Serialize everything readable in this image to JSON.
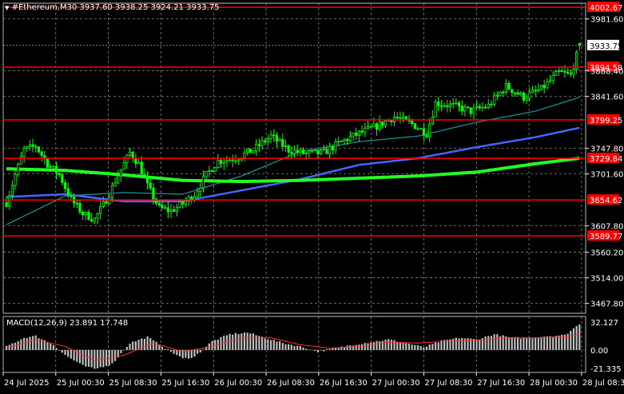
{
  "header": {
    "symbol_line": "#Ethereum,M30  3937.60 3938.25 3924.21 3933.75"
  },
  "colors": {
    "background": "#000000",
    "grid": "#9a9a9a",
    "candle": "#00ff00",
    "level_line": "#ff0000",
    "label_bg": "#ff0000",
    "ma_fast": "#1f8c8c",
    "ma_mid": "#4466ff",
    "ma_slow": "#22ff22",
    "macd_hist": "#c0c0c0",
    "macd_signal": "#ff3030",
    "axis_text": "#ffffff"
  },
  "chart_data": [
    {
      "type": "candlestick",
      "timeframe": "M30",
      "symbol": "#Ethereum",
      "ohlc_last": {
        "open": 3937.6,
        "high": 3938.25,
        "low": 3924.21,
        "close": 3933.75
      },
      "ylim": [
        3450,
        4010
      ],
      "y_ticks": [
        "3981.60",
        "3888.40",
        "3841.60",
        "3747.80",
        "3701.60",
        "3607.80",
        "3560.20",
        "3514.00",
        "3467.80"
      ],
      "x_ticks": [
        "24 Jul 2025",
        "25 Jul 00:30",
        "25 Jul 08:30",
        "25 Jul 16:30",
        "26 Jul 00:30",
        "26 Jul 08:30",
        "26 Jul 16:30",
        "27 Jul 00:30",
        "27 Jul 08:30",
        "27 Jul 16:30",
        "28 Jul 00:30",
        "28 Jul 08:30"
      ],
      "current_price": "3933.75",
      "levels": [
        "4002.67",
        "3894.58",
        "3799.25",
        "3729.84",
        "3654.62",
        "3589.77"
      ],
      "close_anchors": [
        [
          0,
          3650
        ],
        [
          3,
          3700
        ],
        [
          6,
          3745
        ],
        [
          10,
          3752
        ],
        [
          14,
          3720
        ],
        [
          18,
          3700
        ],
        [
          22,
          3655
        ],
        [
          26,
          3630
        ],
        [
          30,
          3620
        ],
        [
          34,
          3655
        ],
        [
          38,
          3700
        ],
        [
          42,
          3740
        ],
        [
          45,
          3720
        ],
        [
          48,
          3680
        ],
        [
          52,
          3640
        ],
        [
          56,
          3635
        ],
        [
          60,
          3648
        ],
        [
          64,
          3665
        ],
        [
          68,
          3700
        ],
        [
          72,
          3725
        ],
        [
          78,
          3730
        ],
        [
          84,
          3745
        ],
        [
          90,
          3770
        ],
        [
          96,
          3745
        ],
        [
          102,
          3738
        ],
        [
          108,
          3740
        ],
        [
          114,
          3760
        ],
        [
          120,
          3775
        ],
        [
          126,
          3788
        ],
        [
          132,
          3805
        ],
        [
          138,
          3792
        ],
        [
          143,
          3775
        ],
        [
          146,
          3830
        ],
        [
          152,
          3825
        ],
        [
          158,
          3815
        ],
        [
          164,
          3825
        ],
        [
          170,
          3860
        ],
        [
          176,
          3840
        ],
        [
          182,
          3855
        ],
        [
          188,
          3885
        ],
        [
          192,
          3880
        ],
        [
          195,
          3933
        ]
      ],
      "moving_averages": [
        {
          "color_key": "ma_fast",
          "anchors": [
            [
              0,
              3610
            ],
            [
              20,
              3662
            ],
            [
              40,
              3668
            ],
            [
              60,
              3665
            ],
            [
              80,
              3698
            ],
            [
              100,
              3742
            ],
            [
              120,
              3760
            ],
            [
              140,
              3770
            ],
            [
              160,
              3795
            ],
            [
              180,
              3815
            ],
            [
              195,
              3840
            ]
          ]
        },
        {
          "color_key": "ma_mid",
          "anchors": [
            [
              0,
              3660
            ],
            [
              20,
              3665
            ],
            [
              40,
              3652
            ],
            [
              60,
              3652
            ],
            [
              80,
              3672
            ],
            [
              100,
              3692
            ],
            [
              120,
              3718
            ],
            [
              140,
              3730
            ],
            [
              160,
              3750
            ],
            [
              180,
              3768
            ],
            [
              195,
              3785
            ]
          ]
        },
        {
          "color_key": "ma_slow",
          "anchors": [
            [
              0,
              3711
            ],
            [
              20,
              3708
            ],
            [
              40,
              3700
            ],
            [
              60,
              3690
            ],
            [
              80,
              3688
            ],
            [
              100,
              3690
            ],
            [
              120,
              3694
            ],
            [
              140,
              3698
            ],
            [
              160,
              3705
            ],
            [
              180,
              3720
            ],
            [
              195,
              3730
            ]
          ]
        }
      ]
    },
    {
      "type": "histogram",
      "indicator": "MACD",
      "label": "MACD(12,26,9) 23.891 17.748",
      "y_ticks": [
        "32.127",
        "0.00",
        "-21.335"
      ],
      "ylim": [
        -24,
        33
      ],
      "hist_anchors": [
        [
          0,
          4
        ],
        [
          6,
          14
        ],
        [
          10,
          16
        ],
        [
          16,
          6
        ],
        [
          20,
          -6
        ],
        [
          26,
          -18
        ],
        [
          30,
          -22
        ],
        [
          36,
          -16
        ],
        [
          42,
          8
        ],
        [
          48,
          15
        ],
        [
          54,
          2
        ],
        [
          60,
          -10
        ],
        [
          64,
          -8
        ],
        [
          70,
          10
        ],
        [
          76,
          18
        ],
        [
          82,
          20
        ],
        [
          88,
          14
        ],
        [
          94,
          8
        ],
        [
          100,
          4
        ],
        [
          106,
          -2
        ],
        [
          112,
          2
        ],
        [
          118,
          6
        ],
        [
          124,
          9
        ],
        [
          130,
          12
        ],
        [
          136,
          8
        ],
        [
          142,
          3
        ],
        [
          148,
          10
        ],
        [
          154,
          14
        ],
        [
          160,
          12
        ],
        [
          166,
          18
        ],
        [
          172,
          14
        ],
        [
          178,
          14
        ],
        [
          184,
          16
        ],
        [
          190,
          17
        ],
        [
          195,
          30
        ]
      ],
      "signal_anchors": [
        [
          0,
          2
        ],
        [
          10,
          12
        ],
        [
          20,
          4
        ],
        [
          30,
          -12
        ],
        [
          40,
          -6
        ],
        [
          50,
          8
        ],
        [
          60,
          -2
        ],
        [
          70,
          4
        ],
        [
          80,
          14
        ],
        [
          90,
          14
        ],
        [
          100,
          6
        ],
        [
          110,
          2
        ],
        [
          120,
          4
        ],
        [
          130,
          9
        ],
        [
          140,
          8
        ],
        [
          150,
          10
        ],
        [
          160,
          11
        ],
        [
          170,
          14
        ],
        [
          180,
          14
        ],
        [
          190,
          15
        ],
        [
          195,
          18
        ]
      ]
    }
  ]
}
